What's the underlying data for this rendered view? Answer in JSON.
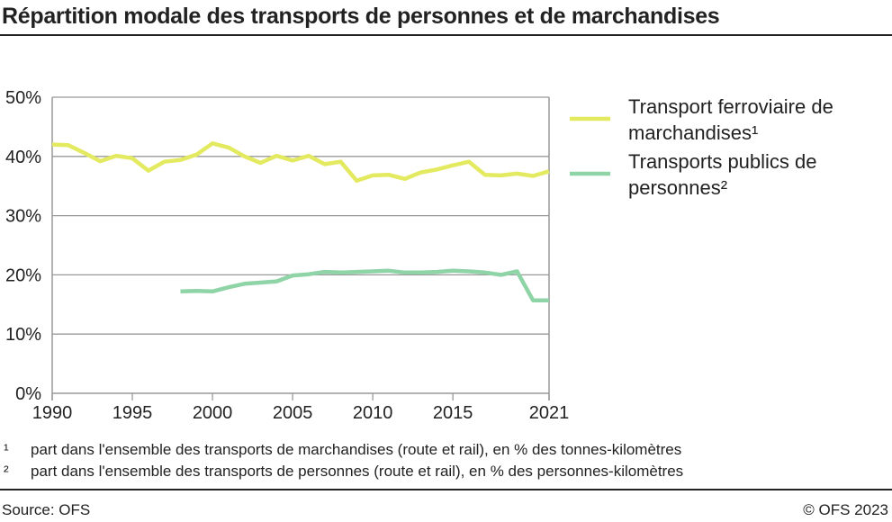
{
  "title": "Répartition modale des transports de personnes et de marchandises",
  "chart_data": {
    "type": "line",
    "title": "Répartition modale des transports de personnes et de marchandises",
    "x_ticks": [
      "1990",
      "1995",
      "2000",
      "2005",
      "2010",
      "2015",
      "2021"
    ],
    "y_ticks": [
      "0%",
      "10%",
      "20%",
      "30%",
      "40%",
      "50%"
    ],
    "xlim": [
      1990,
      2021
    ],
    "ylim": [
      0,
      50
    ],
    "grid": "horizontal",
    "legend_position": "right",
    "series": [
      {
        "name": "Transport ferroviaire de marchandises¹",
        "legend_lines": [
          "Transport ferroviaire de",
          "marchandises¹"
        ],
        "color": "#e3ea5f",
        "x": [
          1990,
          1991,
          1992,
          1993,
          1994,
          1995,
          1996,
          1997,
          1998,
          1999,
          2000,
          2001,
          2002,
          2003,
          2004,
          2005,
          2006,
          2007,
          2008,
          2009,
          2010,
          2011,
          2012,
          2013,
          2014,
          2015,
          2016,
          2017,
          2018,
          2019,
          2020,
          2021
        ],
        "values": [
          42.0,
          41.9,
          40.6,
          39.2,
          40.1,
          39.7,
          37.6,
          39.1,
          39.4,
          40.3,
          42.2,
          41.5,
          40.0,
          38.9,
          40.1,
          39.3,
          40.1,
          38.7,
          39.1,
          35.9,
          36.8,
          36.9,
          36.2,
          37.3,
          37.8,
          38.5,
          39.1,
          36.9,
          36.8,
          37.1,
          36.7,
          37.5
        ]
      },
      {
        "name": "Transports publics de personnes²",
        "legend_lines": [
          "Transports publics de",
          "personnes²"
        ],
        "color": "#8fd4a6",
        "x": [
          1998,
          1999,
          2000,
          2001,
          2002,
          2003,
          2004,
          2005,
          2006,
          2007,
          2008,
          2009,
          2010,
          2011,
          2012,
          2013,
          2014,
          2015,
          2016,
          2017,
          2018,
          2019,
          2020,
          2021
        ],
        "values": [
          17.2,
          17.3,
          17.2,
          17.9,
          18.5,
          18.7,
          18.9,
          19.9,
          20.1,
          20.5,
          20.4,
          20.5,
          20.6,
          20.7,
          20.4,
          20.4,
          20.5,
          20.7,
          20.6,
          20.4,
          20.0,
          20.6,
          15.7,
          15.7
        ]
      }
    ]
  },
  "footnotes": [
    {
      "mark": "¹",
      "text": "part dans l'ensemble des transports de marchandises (route et rail), en % des tonnes-kilomètres"
    },
    {
      "mark": "²",
      "text": "part dans l'ensemble des transports de personnes (route et rail), en % des personnes-kilomètres"
    }
  ],
  "source": "Source: OFS",
  "copyright": "© OFS 2023"
}
